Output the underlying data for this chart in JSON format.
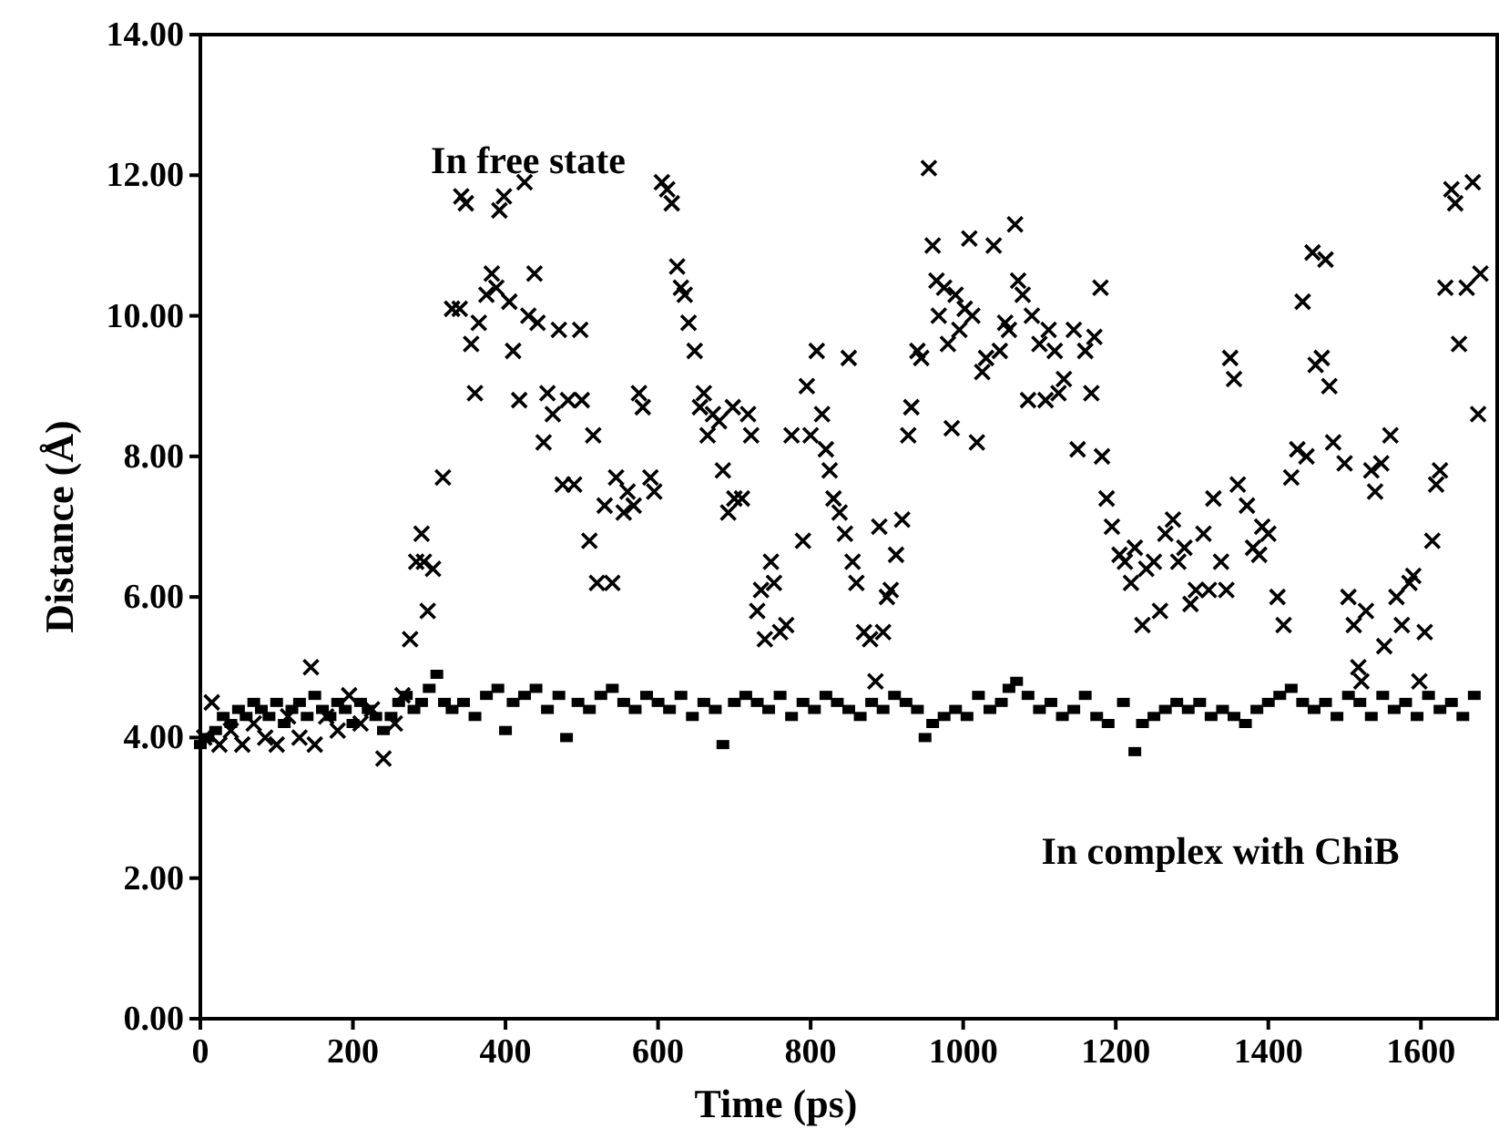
{
  "chart_data": {
    "type": "scatter",
    "xlabel": "Time (ps)",
    "ylabel": "Distance (Å)",
    "xlim": [
      0,
      1700
    ],
    "ylim": [
      0,
      14
    ],
    "xticks": [
      0,
      200,
      400,
      600,
      800,
      1000,
      1200,
      1400,
      1600
    ],
    "yticks": [
      {
        "value": 0,
        "label": "0.00"
      },
      {
        "value": 2,
        "label": "2.00"
      },
      {
        "value": 4,
        "label": "4.00"
      },
      {
        "value": 6,
        "label": "6.00"
      },
      {
        "value": 8,
        "label": "8.00"
      },
      {
        "value": 10,
        "label": "10.00"
      },
      {
        "value": 12,
        "label": "12.00"
      },
      {
        "value": 14,
        "label": "14.00"
      }
    ],
    "grid": false,
    "series": [
      {
        "name": "In free state",
        "color": "#000000",
        "marker": "cross",
        "x": [
          5,
          15,
          25,
          40,
          55,
          70,
          85,
          100,
          115,
          130,
          145,
          150,
          165,
          180,
          195,
          210,
          225,
          240,
          255,
          265,
          275,
          283,
          290,
          293,
          298,
          305,
          318,
          330,
          340,
          342,
          348,
          355,
          360,
          365,
          375,
          382,
          388,
          392,
          398,
          405,
          410,
          418,
          425,
          430,
          438,
          442,
          450,
          455,
          462,
          470,
          475,
          482,
          490,
          498,
          500,
          510,
          515,
          520,
          530,
          540,
          545,
          555,
          560,
          568,
          575,
          580,
          590,
          595,
          605,
          612,
          618,
          625,
          630,
          635,
          640,
          648,
          655,
          660,
          665,
          672,
          680,
          685,
          692,
          698,
          700,
          710,
          718,
          722,
          730,
          735,
          740,
          748,
          752,
          760,
          768,
          775,
          790,
          795,
          800,
          808,
          815,
          820,
          825,
          830,
          838,
          845,
          850,
          855,
          860,
          870,
          878,
          885,
          890,
          895,
          900,
          905,
          912,
          920,
          928,
          932,
          940,
          945,
          955,
          960,
          965,
          968,
          975,
          980,
          985,
          990,
          995,
          1002,
          1008,
          1012,
          1018,
          1025,
          1030,
          1040,
          1048,
          1055,
          1060,
          1068,
          1072,
          1078,
          1085,
          1090,
          1100,
          1108,
          1112,
          1120,
          1125,
          1132,
          1145,
          1150,
          1160,
          1168,
          1172,
          1180,
          1182,
          1188,
          1195,
          1205,
          1212,
          1220,
          1225,
          1235,
          1240,
          1250,
          1258,
          1265,
          1275,
          1282,
          1290,
          1298,
          1305,
          1315,
          1322,
          1328,
          1338,
          1345,
          1350,
          1355,
          1360,
          1372,
          1380,
          1388,
          1392,
          1400,
          1412,
          1420,
          1430,
          1438,
          1445,
          1450,
          1458,
          1462,
          1470,
          1475,
          1480,
          1485,
          1500,
          1505,
          1512,
          1518,
          1522,
          1528,
          1535,
          1540,
          1548,
          1552,
          1560,
          1568,
          1575,
          1585,
          1590,
          1598,
          1605,
          1615,
          1620,
          1625,
          1632,
          1640,
          1645,
          1650,
          1660,
          1668,
          1675,
          1678
        ],
        "values": [
          4.0,
          4.5,
          3.9,
          4.1,
          3.9,
          4.2,
          4.0,
          3.9,
          4.3,
          4.0,
          5.0,
          3.9,
          4.3,
          4.1,
          4.6,
          4.2,
          4.4,
          3.7,
          4.2,
          4.6,
          5.4,
          6.5,
          6.9,
          6.5,
          5.8,
          6.4,
          7.7,
          10.1,
          10.1,
          11.7,
          11.6,
          9.6,
          8.9,
          9.9,
          10.3,
          10.6,
          10.4,
          11.5,
          11.7,
          10.2,
          9.5,
          8.8,
          11.9,
          10.0,
          10.6,
          9.9,
          8.2,
          8.9,
          8.6,
          9.8,
          7.6,
          8.8,
          7.6,
          9.8,
          8.8,
          6.8,
          8.3,
          6.2,
          7.3,
          6.2,
          7.7,
          7.2,
          7.5,
          7.3,
          8.9,
          8.7,
          7.7,
          7.5,
          11.9,
          11.8,
          11.6,
          10.7,
          10.4,
          10.3,
          9.9,
          9.5,
          8.7,
          8.9,
          8.3,
          8.6,
          8.5,
          7.8,
          7.2,
          8.7,
          7.4,
          7.4,
          8.6,
          8.3,
          5.8,
          6.1,
          5.4,
          6.5,
          6.2,
          5.5,
          5.6,
          8.3,
          6.8,
          9.0,
          8.3,
          9.5,
          8.6,
          8.1,
          7.8,
          7.4,
          7.2,
          6.9,
          9.4,
          6.5,
          6.2,
          5.5,
          5.4,
          4.8,
          7.0,
          5.5,
          6.0,
          6.1,
          6.6,
          7.1,
          8.3,
          8.7,
          9.5,
          9.4,
          12.1,
          11.0,
          10.5,
          10.0,
          10.4,
          9.6,
          8.4,
          10.3,
          9.8,
          10.1,
          11.1,
          10.0,
          8.2,
          9.2,
          9.4,
          11.0,
          9.5,
          9.9,
          9.8,
          11.3,
          10.5,
          10.3,
          8.8,
          10.0,
          9.6,
          8.8,
          9.8,
          9.5,
          8.9,
          9.1,
          9.8,
          8.1,
          9.5,
          8.9,
          9.7,
          10.4,
          8.0,
          7.4,
          7.0,
          6.6,
          6.5,
          6.2,
          6.7,
          5.6,
          6.4,
          6.5,
          5.8,
          6.9,
          7.1,
          6.5,
          6.7,
          5.9,
          6.1,
          6.9,
          6.1,
          7.4,
          6.5,
          6.1,
          9.4,
          9.1,
          7.6,
          7.3,
          6.7,
          6.6,
          7.0,
          6.9,
          6.0,
          5.6,
          7.7,
          8.1,
          10.2,
          8.0,
          10.9,
          9.3,
          9.4,
          10.8,
          9.0,
          8.2,
          7.9,
          6.0,
          5.6,
          5.0,
          4.8,
          5.8,
          7.8,
          7.5,
          7.9,
          5.3,
          8.3,
          6.0,
          5.6,
          6.2,
          6.3,
          4.8,
          5.5,
          6.8,
          7.6,
          7.8,
          10.4,
          11.8,
          11.6,
          9.6,
          10.4,
          11.9,
          8.6,
          10.6
        ]
      },
      {
        "name": "In complex with ChiB",
        "color": "#000000",
        "marker": "square",
        "x": [
          0,
          10,
          20,
          30,
          40,
          50,
          60,
          70,
          80,
          90,
          100,
          110,
          120,
          130,
          140,
          150,
          160,
          170,
          180,
          190,
          200,
          210,
          220,
          230,
          240,
          250,
          260,
          270,
          280,
          290,
          300,
          310,
          320,
          330,
          345,
          360,
          375,
          390,
          400,
          410,
          425,
          440,
          455,
          470,
          480,
          495,
          510,
          525,
          540,
          555,
          570,
          585,
          600,
          615,
          630,
          645,
          660,
          675,
          685,
          700,
          715,
          730,
          745,
          760,
          775,
          790,
          805,
          820,
          835,
          850,
          865,
          880,
          895,
          910,
          925,
          940,
          950,
          960,
          975,
          990,
          1005,
          1020,
          1035,
          1050,
          1060,
          1070,
          1085,
          1100,
          1115,
          1130,
          1145,
          1160,
          1175,
          1190,
          1210,
          1225,
          1235,
          1250,
          1265,
          1280,
          1295,
          1310,
          1325,
          1340,
          1355,
          1370,
          1385,
          1400,
          1415,
          1430,
          1445,
          1460,
          1475,
          1490,
          1505,
          1520,
          1535,
          1550,
          1565,
          1580,
          1595,
          1610,
          1625,
          1640,
          1655,
          1670
        ],
        "values": [
          3.9,
          4.0,
          4.1,
          4.3,
          4.2,
          4.4,
          4.3,
          4.5,
          4.4,
          4.3,
          4.5,
          4.2,
          4.4,
          4.5,
          4.3,
          4.6,
          4.4,
          4.3,
          4.5,
          4.4,
          4.2,
          4.5,
          4.4,
          4.3,
          4.1,
          4.3,
          4.5,
          4.6,
          4.4,
          4.5,
          4.7,
          4.9,
          4.5,
          4.4,
          4.5,
          4.3,
          4.6,
          4.7,
          4.1,
          4.5,
          4.6,
          4.7,
          4.4,
          4.6,
          4.0,
          4.5,
          4.4,
          4.6,
          4.7,
          4.5,
          4.4,
          4.6,
          4.5,
          4.4,
          4.6,
          4.3,
          4.5,
          4.4,
          3.9,
          4.5,
          4.6,
          4.5,
          4.4,
          4.6,
          4.3,
          4.5,
          4.4,
          4.6,
          4.5,
          4.4,
          4.3,
          4.5,
          4.4,
          4.6,
          4.5,
          4.4,
          4.0,
          4.2,
          4.3,
          4.4,
          4.3,
          4.6,
          4.4,
          4.5,
          4.7,
          4.8,
          4.6,
          4.4,
          4.5,
          4.3,
          4.4,
          4.6,
          4.3,
          4.2,
          4.5,
          3.8,
          4.2,
          4.3,
          4.4,
          4.5,
          4.4,
          4.5,
          4.3,
          4.4,
          4.3,
          4.2,
          4.4,
          4.5,
          4.6,
          4.7,
          4.5,
          4.4,
          4.5,
          4.3,
          4.6,
          4.5,
          4.3,
          4.6,
          4.4,
          4.5,
          4.3,
          4.6,
          4.4,
          4.5,
          4.3,
          4.6
        ]
      }
    ]
  }
}
